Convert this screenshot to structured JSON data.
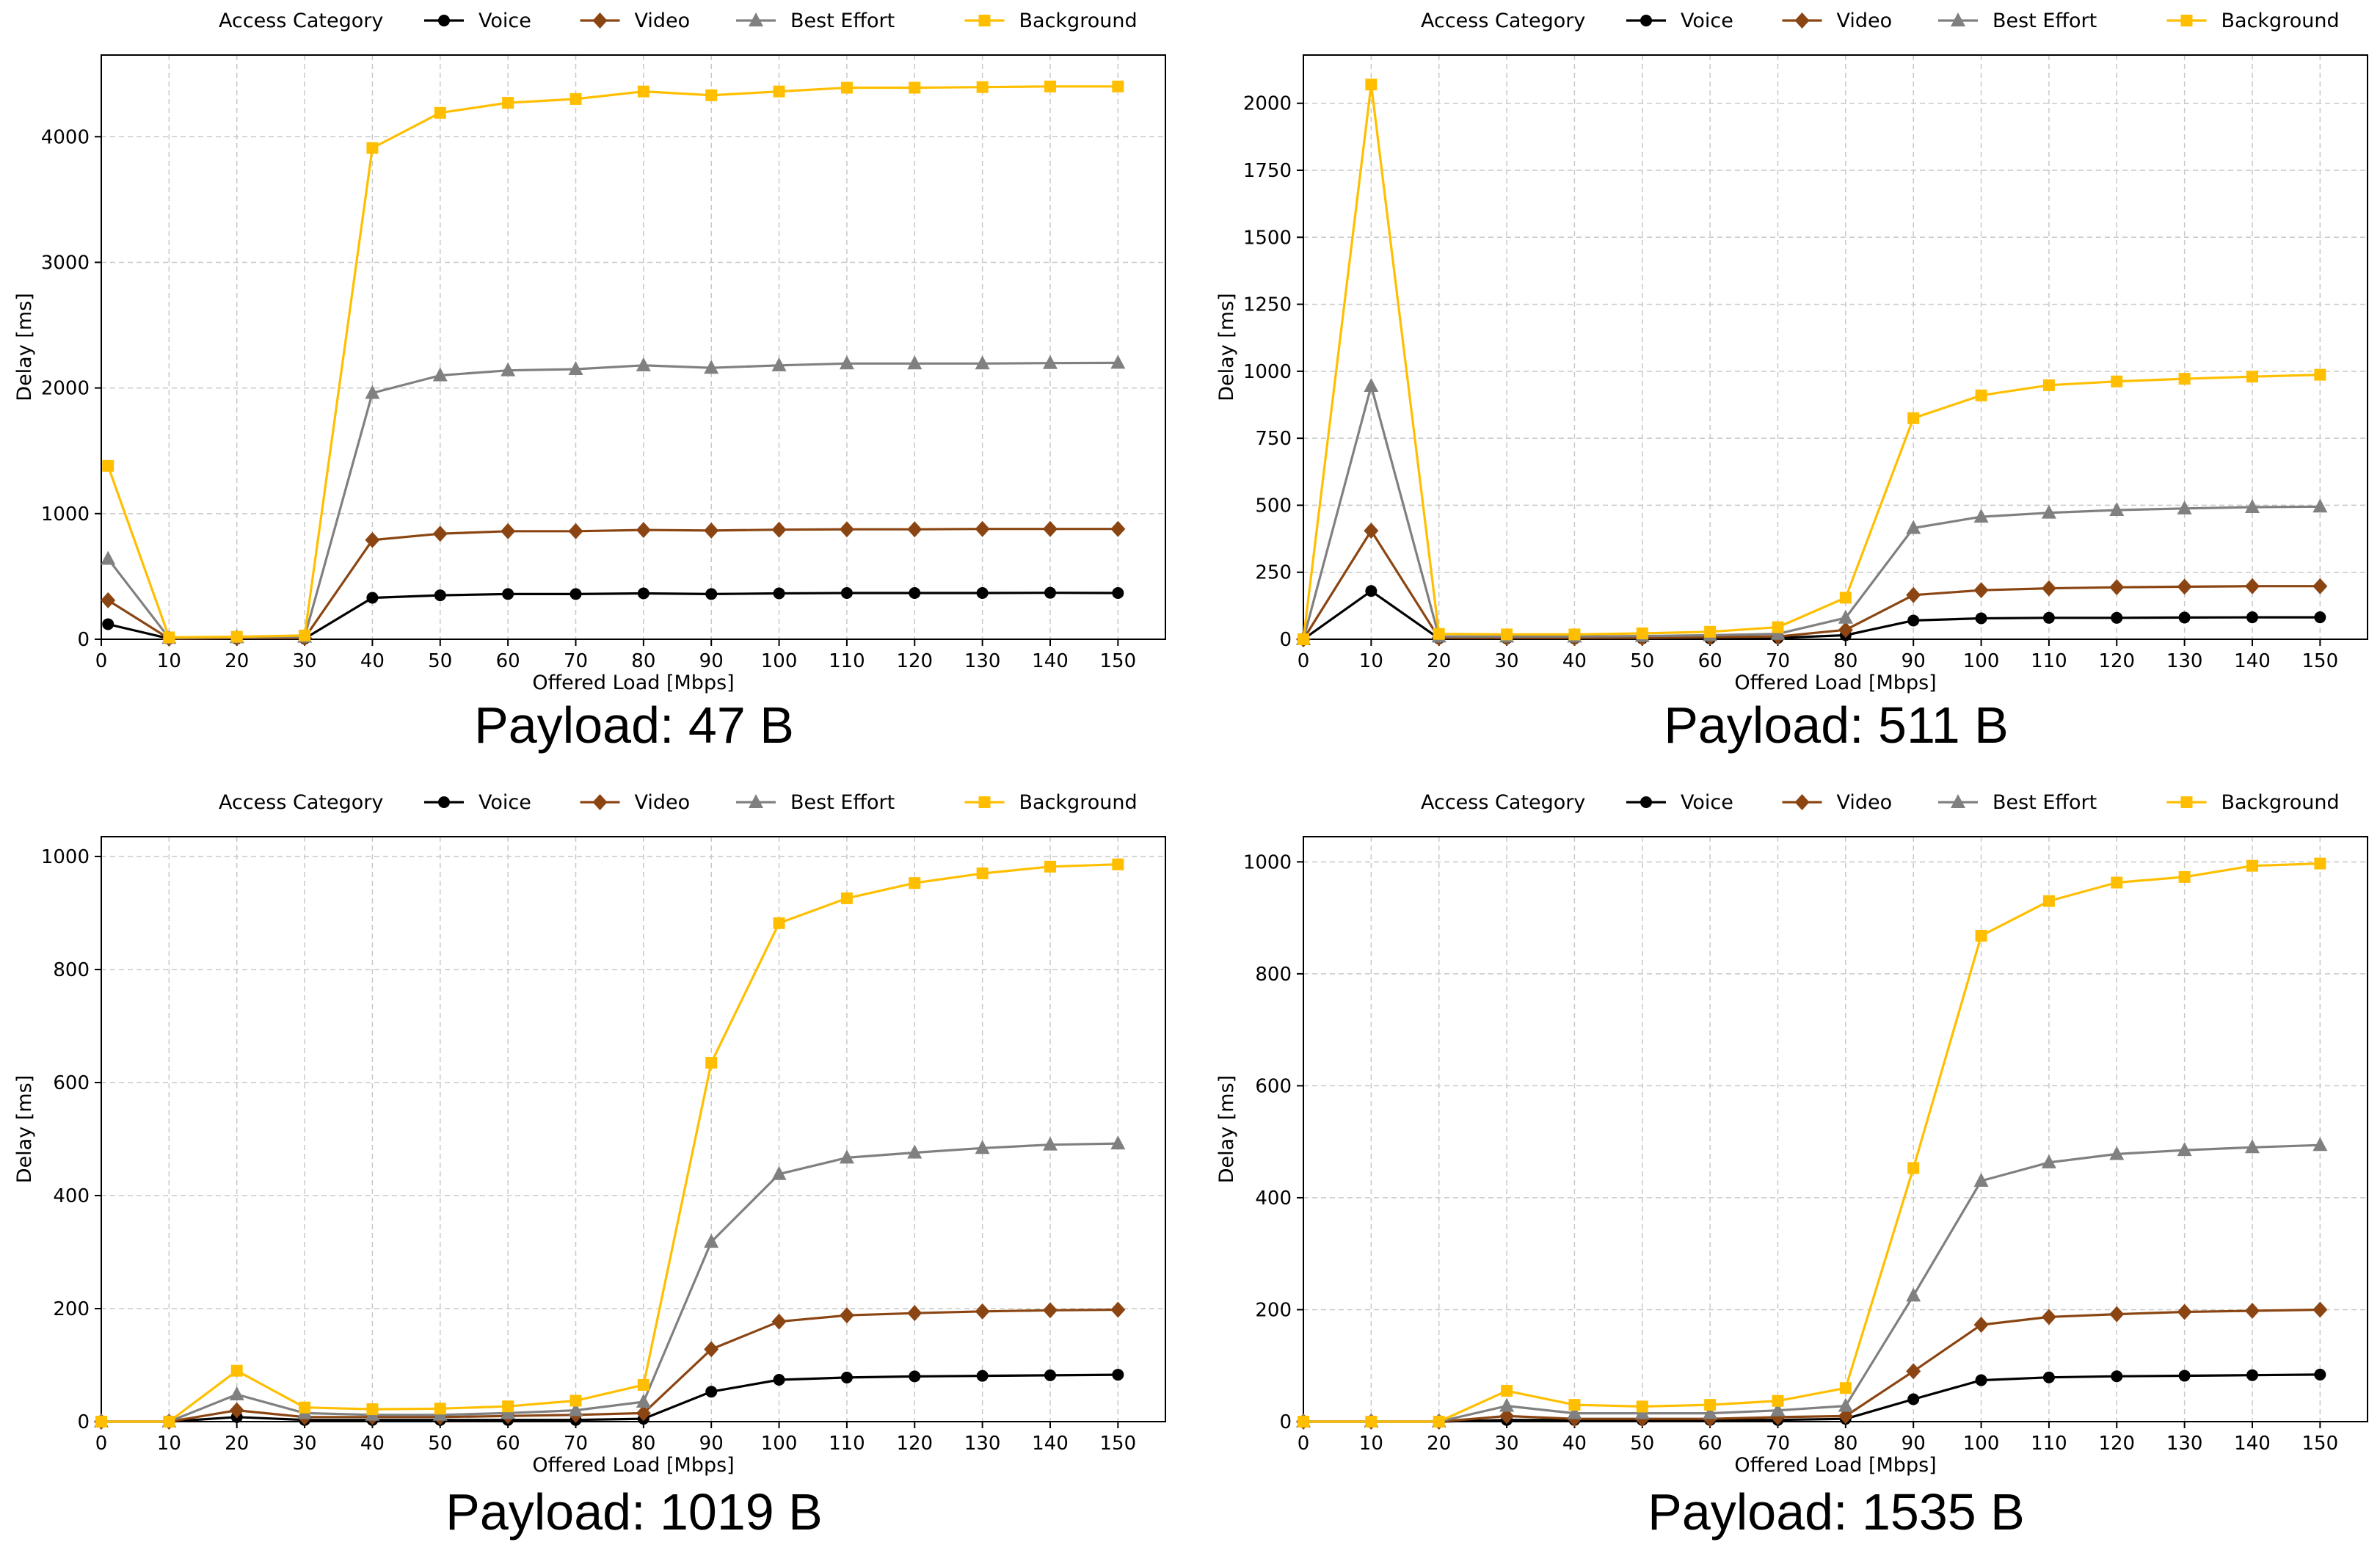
{
  "figure": {
    "legend_title": "Access Category",
    "series_styles": {
      "Voice": {
        "color": "#000000",
        "marker": "circle"
      },
      "Video": {
        "color": "#8B4513",
        "marker": "diamond"
      },
      "Best Effort": {
        "color": "#808080",
        "marker": "triangle"
      },
      "Background": {
        "color": "#FFBF00",
        "marker": "square"
      }
    }
  },
  "chart_data": [
    {
      "type": "line",
      "caption": "Payload: 47 B",
      "xlabel": "Offered Load [Mbps]",
      "ylabel": "Delay [ms]",
      "xlim": [
        0,
        157
      ],
      "ylim": [
        0,
        4650
      ],
      "xticks": [
        0,
        10,
        20,
        30,
        40,
        50,
        60,
        70,
        80,
        90,
        100,
        110,
        120,
        130,
        140,
        150
      ],
      "yticks": [
        0,
        1000,
        2000,
        3000,
        4000
      ],
      "grid": true,
      "legend_position": "top-center",
      "x": [
        1,
        10,
        20,
        30,
        40,
        50,
        60,
        70,
        80,
        90,
        100,
        110,
        120,
        130,
        140,
        150
      ],
      "series": [
        {
          "name": "Voice",
          "values": [
            120,
            5,
            5,
            5,
            330,
            350,
            360,
            360,
            365,
            360,
            365,
            368,
            368,
            368,
            370,
            368
          ]
        },
        {
          "name": "Video",
          "values": [
            310,
            5,
            10,
            10,
            790,
            840,
            860,
            860,
            870,
            865,
            872,
            875,
            875,
            878,
            878,
            878
          ]
        },
        {
          "name": "Best Effort",
          "values": [
            640,
            10,
            15,
            20,
            1960,
            2100,
            2140,
            2150,
            2180,
            2160,
            2180,
            2195,
            2195,
            2195,
            2198,
            2200
          ]
        },
        {
          "name": "Background",
          "values": [
            1380,
            15,
            20,
            30,
            3910,
            4190,
            4270,
            4300,
            4360,
            4330,
            4360,
            4390,
            4390,
            4395,
            4400,
            4400
          ]
        }
      ]
    },
    {
      "type": "line",
      "caption": "Payload: 511 B",
      "xlabel": "Offered Load [Mbps]",
      "ylabel": "Delay [ms]",
      "xlim": [
        0,
        157
      ],
      "ylim": [
        0,
        2180
      ],
      "xticks": [
        0,
        10,
        20,
        30,
        40,
        50,
        60,
        70,
        80,
        90,
        100,
        110,
        120,
        130,
        140,
        150
      ],
      "yticks": [
        0,
        250,
        500,
        750,
        1000,
        1250,
        1500,
        1750,
        2000
      ],
      "grid": true,
      "legend_position": "top-center",
      "x": [
        0,
        10,
        20,
        30,
        40,
        50,
        60,
        70,
        80,
        90,
        100,
        110,
        120,
        130,
        140,
        150
      ],
      "series": [
        {
          "name": "Voice",
          "values": [
            0,
            180,
            3,
            3,
            3,
            3,
            3,
            5,
            15,
            70,
            78,
            80,
            80,
            81,
            82,
            82
          ]
        },
        {
          "name": "Video",
          "values": [
            0,
            405,
            5,
            5,
            5,
            5,
            8,
            10,
            35,
            165,
            183,
            190,
            194,
            196,
            198,
            198
          ]
        },
        {
          "name": "Best Effort",
          "values": [
            0,
            945,
            10,
            10,
            10,
            12,
            15,
            20,
            80,
            415,
            457,
            472,
            482,
            488,
            493,
            495
          ]
        },
        {
          "name": "Background",
          "values": [
            0,
            2070,
            20,
            18,
            18,
            22,
            28,
            45,
            155,
            825,
            910,
            948,
            962,
            972,
            980,
            987
          ]
        }
      ]
    },
    {
      "type": "line",
      "caption": "Payload: 1019 B",
      "xlabel": "Offered Load [Mbps]",
      "ylabel": "Delay [ms]",
      "xlim": [
        0,
        157
      ],
      "ylim": [
        0,
        1035
      ],
      "xticks": [
        0,
        10,
        20,
        30,
        40,
        50,
        60,
        70,
        80,
        90,
        100,
        110,
        120,
        130,
        140,
        150
      ],
      "yticks": [
        0,
        200,
        400,
        600,
        800,
        1000
      ],
      "grid": true,
      "legend_position": "top-center",
      "x": [
        0,
        10,
        20,
        30,
        40,
        50,
        60,
        70,
        80,
        90,
        100,
        110,
        120,
        130,
        140,
        150
      ],
      "series": [
        {
          "name": "Voice",
          "values": [
            0,
            0,
            8,
            3,
            3,
            3,
            3,
            3,
            5,
            53,
            74,
            78,
            80,
            81,
            82,
            83
          ]
        },
        {
          "name": "Video",
          "values": [
            0,
            0,
            20,
            8,
            8,
            8,
            10,
            12,
            15,
            128,
            177,
            188,
            192,
            195,
            197,
            198
          ]
        },
        {
          "name": "Best Effort",
          "values": [
            0,
            0,
            48,
            15,
            12,
            12,
            15,
            20,
            35,
            318,
            438,
            467,
            476,
            484,
            490,
            492
          ]
        },
        {
          "name": "Background",
          "values": [
            0,
            0,
            90,
            25,
            22,
            23,
            27,
            37,
            65,
            635,
            882,
            926,
            953,
            970,
            982,
            986
          ]
        }
      ]
    },
    {
      "type": "line",
      "caption": "Payload: 1535 B",
      "xlabel": "Offered Load [Mbps]",
      "ylabel": "Delay [ms]",
      "xlim": [
        0,
        157
      ],
      "ylim": [
        0,
        1045
      ],
      "xticks": [
        0,
        10,
        20,
        30,
        40,
        50,
        60,
        70,
        80,
        90,
        100,
        110,
        120,
        130,
        140,
        150
      ],
      "yticks": [
        0,
        200,
        400,
        600,
        800,
        1000
      ],
      "grid": true,
      "legend_position": "top-center",
      "x": [
        0,
        10,
        20,
        30,
        40,
        50,
        60,
        70,
        80,
        90,
        100,
        110,
        120,
        130,
        140,
        150
      ],
      "series": [
        {
          "name": "Voice",
          "values": [
            0,
            0,
            0,
            3,
            3,
            3,
            3,
            3,
            5,
            40,
            74,
            79,
            81,
            82,
            83,
            84
          ]
        },
        {
          "name": "Video",
          "values": [
            0,
            0,
            0,
            10,
            5,
            5,
            5,
            8,
            10,
            90,
            173,
            187,
            192,
            196,
            198,
            200
          ]
        },
        {
          "name": "Best Effort",
          "values": [
            0,
            0,
            0,
            28,
            15,
            15,
            15,
            20,
            28,
            225,
            430,
            463,
            478,
            485,
            490,
            494
          ]
        },
        {
          "name": "Background",
          "values": [
            0,
            0,
            0,
            55,
            30,
            27,
            30,
            37,
            60,
            453,
            868,
            930,
            963,
            973,
            993,
            997
          ]
        }
      ]
    }
  ]
}
